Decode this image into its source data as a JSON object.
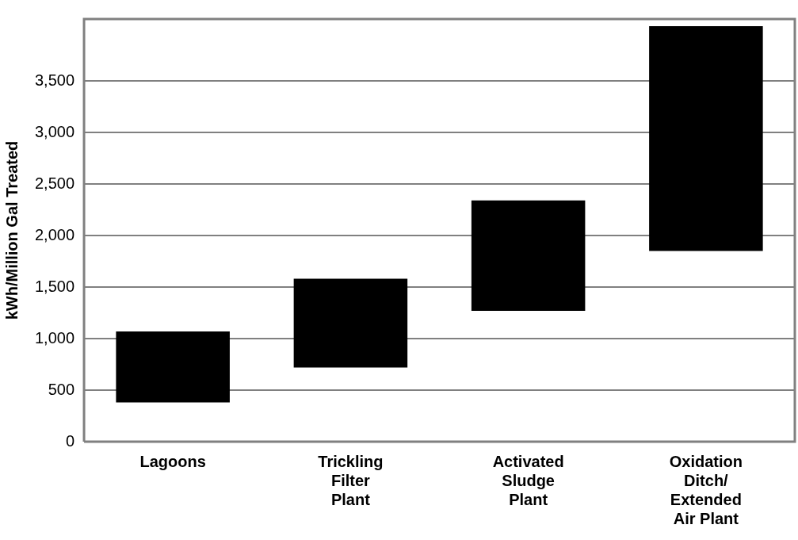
{
  "chart_data": {
    "type": "bar",
    "ylabel": "kWh/Million Gal Treated",
    "categories": [
      "Lagoons",
      "Trickling Filter Plant",
      "Activated Sludge Plant",
      "Oxidation Ditch/ Extended Air Plant"
    ],
    "base": [
      380,
      720,
      1270,
      1850
    ],
    "values": [
      690,
      860,
      1070,
      2180
    ],
    "color": "#000000",
    "ylim": [
      0,
      4100
    ],
    "yticks": [
      0,
      500,
      {
        "value": 1000,
        "label": "1,000"
      },
      {
        "value": 1500,
        "label": "1,500"
      },
      {
        "value": 2000,
        "label": "2,000"
      },
      {
        "value": 2500,
        "label": "2,500"
      },
      {
        "value": 3000,
        "label": "3,000"
      },
      {
        "value": 3500,
        "label": "3,500"
      }
    ],
    "grid": "y",
    "legend": false
  }
}
